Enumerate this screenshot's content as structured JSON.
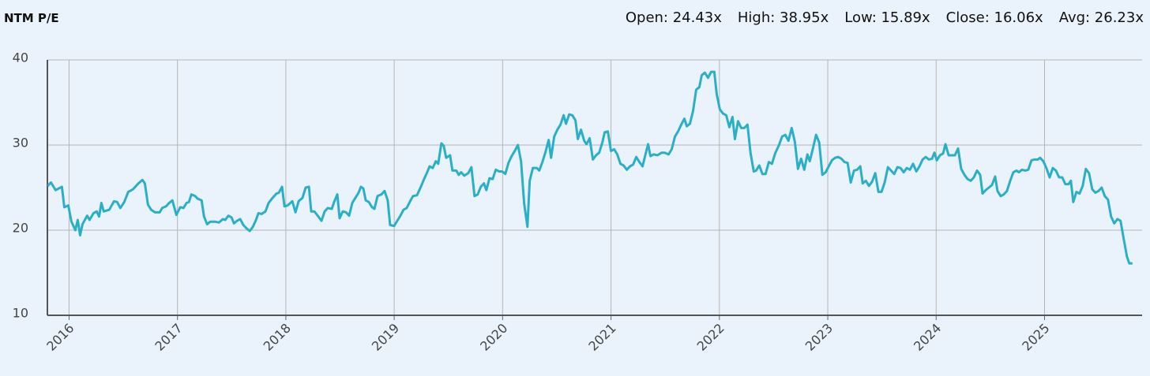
{
  "chart_data": {
    "type": "line",
    "title": "NTM P/E",
    "stats": [
      "Open: 24.43x",
      "High: 38.95x",
      "Low: 15.89x",
      "Close: 16.06x",
      "Avg: 26.23x"
    ],
    "color": "#2aafc7",
    "grid": true,
    "xlim": [
      2015.8,
      2025.9
    ],
    "xticks": [
      2016,
      2017,
      2018,
      2019,
      2020,
      2021,
      2022,
      2023,
      2024,
      2025
    ],
    "ylim": [
      10,
      40
    ],
    "yticks": [
      10,
      20,
      30,
      40
    ],
    "x": [
      2015.803,
      2015.833,
      2015.876,
      2015.934,
      2015.956,
      2015.993,
      2016.022,
      2016.058,
      2016.08,
      2016.102,
      2016.124,
      2016.167,
      2016.189,
      2016.226,
      2016.255,
      2016.277,
      2016.298,
      2016.32,
      2016.371,
      2016.415,
      2016.444,
      2016.473,
      2016.509,
      2016.546,
      2016.59,
      2016.64,
      2016.677,
      2016.699,
      2016.728,
      2016.757,
      2016.793,
      2016.837,
      2016.859,
      2016.895,
      2016.924,
      2016.953,
      2016.99,
      2017.026,
      2017.055,
      2017.084,
      2017.106,
      2017.128,
      2017.164,
      2017.186,
      2017.223,
      2017.245,
      2017.274,
      2017.303,
      2017.346,
      2017.383,
      2017.419,
      2017.441,
      2017.47,
      2017.499,
      2017.521,
      2017.55,
      2017.579,
      2017.608,
      2017.638,
      2017.667,
      2017.696,
      2017.725,
      2017.747,
      2017.776,
      2017.812,
      2017.841,
      2017.878,
      2017.914,
      2017.936,
      2017.965,
      2017.987,
      2018.016,
      2018.06,
      2018.089,
      2018.118,
      2018.154,
      2018.183,
      2018.213,
      2018.234,
      2018.263,
      2018.3,
      2018.329,
      2018.358,
      2018.387,
      2018.424,
      2018.445,
      2018.475,
      2018.496,
      2018.525,
      2018.555,
      2018.584,
      2018.613,
      2018.642,
      2018.671,
      2018.693,
      2018.715,
      2018.737,
      2018.766,
      2018.795,
      2018.817,
      2018.846,
      2018.882,
      2018.911,
      2018.94,
      2018.962,
      2018.999,
      2019.028,
      2019.057,
      2019.086,
      2019.115,
      2019.151,
      2019.173,
      2019.21,
      2019.246,
      2019.275,
      2019.304,
      2019.326,
      2019.355,
      2019.384,
      2019.406,
      2019.435,
      2019.457,
      2019.479,
      2019.515,
      2019.537,
      2019.573,
      2019.595,
      2019.617,
      2019.646,
      2019.683,
      2019.712,
      2019.741,
      2019.77,
      2019.799,
      2019.828,
      2019.85,
      2019.879,
      2019.908,
      2019.937,
      2019.967,
      2019.996,
      2020.025,
      2020.054,
      2020.083,
      2020.112,
      2020.141,
      2020.17,
      2020.199,
      2020.229,
      2020.25,
      2020.279,
      2020.316,
      2020.338,
      2020.367,
      2020.396,
      2020.425,
      2020.447,
      2020.476,
      2020.505,
      2020.534,
      2020.563,
      2020.585,
      2020.614,
      2020.643,
      2020.672,
      2020.694,
      2020.723,
      2020.753,
      2020.774,
      2020.803,
      2020.833,
      2020.862,
      2020.891,
      2020.92,
      2020.942,
      2020.971,
      2021.0,
      2021.029,
      2021.058,
      2021.087,
      2021.116,
      2021.146,
      2021.175,
      2021.204,
      2021.233,
      2021.262,
      2021.291,
      2021.32,
      2021.342,
      2021.364,
      2021.393,
      2021.429,
      2021.466,
      2021.495,
      2021.531,
      2021.56,
      2021.59,
      2021.619,
      2021.648,
      2021.677,
      2021.699,
      2021.728,
      2021.757,
      2021.786,
      2021.815,
      2021.837,
      2021.866,
      2021.895,
      2021.924,
      2021.953,
      2021.975,
      2022.004,
      2022.033,
      2022.063,
      2022.092,
      2022.121,
      2022.143,
      2022.172,
      2022.201,
      2022.23,
      2022.259,
      2022.288,
      2022.317,
      2022.339,
      2022.368,
      2022.397,
      2022.426,
      2022.456,
      2022.485,
      2022.514,
      2022.55,
      2022.579,
      2022.608,
      2022.637,
      2022.667,
      2022.696,
      2022.725,
      2022.754,
      2022.783,
      2022.812,
      2022.834,
      2022.863,
      2022.892,
      2022.921,
      2022.95,
      2022.98,
      2023.009,
      2023.038,
      2023.067,
      2023.096,
      2023.125,
      2023.154,
      2023.183,
      2023.212,
      2023.242,
      2023.271,
      2023.3,
      2023.322,
      2023.351,
      2023.38,
      2023.409,
      2023.438,
      2023.467,
      2023.496,
      2023.525,
      2023.555,
      2023.584,
      2023.613,
      2023.642,
      2023.671,
      2023.7,
      2023.729,
      2023.758,
      2023.787,
      2023.817,
      2023.846,
      2023.875,
      2023.904,
      2023.933,
      2023.962,
      2023.984,
      2024.006,
      2024.035,
      2024.064,
      2024.086,
      2024.115,
      2024.144,
      2024.173,
      2024.202,
      2024.231,
      2024.261,
      2024.29,
      2024.319,
      2024.348,
      2024.377,
      2024.406,
      2024.428,
      2024.457,
      2024.486,
      2024.515,
      2024.544,
      2024.566,
      2024.595,
      2024.624,
      2024.653,
      2024.683,
      2024.712,
      2024.741,
      2024.763,
      2024.792,
      2024.821,
      2024.85,
      2024.879,
      2024.908,
      2024.937,
      2024.959,
      2024.988,
      2025.017,
      2025.047,
      2025.076,
      2025.105,
      2025.134,
      2025.163,
      2025.192,
      2025.221,
      2025.243,
      2025.265,
      2025.294,
      2025.323,
      2025.352,
      2025.381,
      2025.41,
      2025.44,
      2025.469,
      2025.498,
      2025.527,
      2025.556,
      2025.585,
      2025.614,
      2025.643,
      2025.672,
      2025.701,
      2025.73,
      2025.76,
      2025.782,
      2025.811
    ],
    "values": [
      25.2,
      25.6,
      24.7,
      25.1,
      22.7,
      22.9,
      21,
      20,
      21.2,
      19.4,
      20.7,
      21.7,
      21.2,
      22,
      22.2,
      21.6,
      23.2,
      22.2,
      22.4,
      23.4,
      23.3,
      22.6,
      23.3,
      24.5,
      24.8,
      25.5,
      25.9,
      25.5,
      23,
      22.4,
      22.1,
      22.1,
      22.6,
      22.8,
      23.2,
      23.5,
      21.8,
      22.7,
      22.6,
      23.2,
      23.3,
      24.2,
      24,
      23.7,
      23.5,
      21.6,
      20.7,
      21,
      21,
      20.9,
      21.3,
      21.2,
      21.7,
      21.5,
      20.8,
      21.1,
      21.3,
      20.6,
      20.2,
      19.9,
      20.4,
      21.2,
      22,
      21.9,
      22.2,
      23.2,
      23.8,
      24.3,
      24.4,
      25.1,
      22.8,
      22.9,
      23.4,
      22.1,
      23.4,
      23.8,
      25,
      25.1,
      22.2,
      22.2,
      21.6,
      21.1,
      22.2,
      22.6,
      22.5,
      23.3,
      24.2,
      21.4,
      22.2,
      22.1,
      21.7,
      23.2,
      23.8,
      24.4,
      25.1,
      24.9,
      23.5,
      23.3,
      22.7,
      22.5,
      24,
      24.2,
      24.6,
      23.5,
      20.6,
      20.5,
      21.1,
      21.7,
      22.4,
      22.6,
      23.5,
      24,
      24.1,
      25.1,
      26,
      26.8,
      27.5,
      27.3,
      28.1,
      27.8,
      30.2,
      29.9,
      28.5,
      28.8,
      27,
      27,
      26.5,
      26.8,
      26.4,
      26.7,
      27.4,
      24,
      24.2,
      25.1,
      25.5,
      24.7,
      26.1,
      26,
      27.1,
      26.9,
      26.9,
      26.6,
      27.9,
      28.7,
      29.3,
      30,
      28.1,
      23.1,
      20.4,
      25.8,
      27.3,
      27.3,
      27,
      28,
      29.2,
      30.6,
      28.5,
      31,
      31.8,
      32.4,
      33.5,
      32.5,
      33.6,
      33.5,
      32.9,
      30.7,
      31.8,
      30.5,
      30.1,
      30.8,
      28.3,
      28.8,
      29.1,
      30.3,
      31.5,
      31.6,
      29.3,
      29.5,
      28.9,
      27.8,
      27.6,
      27.1,
      27.5,
      27.7,
      28.6,
      28,
      27.5,
      29,
      30.1,
      28.7,
      28.9,
      28.8,
      29.1,
      29.1,
      28.9,
      29.5,
      31,
      31.6,
      32.4,
      33.1,
      32.2,
      32.5,
      34,
      36.5,
      36.8,
      38.2,
      38.5,
      37.9,
      38.6,
      38.6,
      36,
      34.2,
      33.7,
      33.5,
      32.1,
      33.3,
      30.7,
      32.8,
      32,
      32,
      32.4,
      29,
      26.9,
      27,
      27.6,
      26.6,
      26.6,
      28,
      27.8,
      29,
      30,
      31,
      31.2,
      30.5,
      32,
      30.4,
      27.2,
      28.4,
      27.1,
      28.9,
      28.1,
      29.6,
      31.2,
      30.3,
      26.5,
      26.8,
      27.5,
      28.2,
      28.5,
      28.6,
      28.4,
      28,
      27.9,
      25.6,
      27,
      27.1,
      27.5,
      25.5,
      25.8,
      25.2,
      25.7,
      26.7,
      24.5,
      24.5,
      25.6,
      27.4,
      27,
      26.6,
      27.4,
      27.3,
      26.8,
      27.3,
      27.1,
      27.8,
      26.9,
      27.5,
      28.3,
      28.6,
      28.3,
      28.4,
      29.1,
      28.2,
      28.8,
      29,
      30.1,
      28.8,
      28.8,
      28.8,
      29.6,
      27.2,
      26.5,
      26,
      25.8,
      26.2,
      27,
      26.5,
      24.3,
      24.7,
      25,
      25.3,
      26.3,
      24.6,
      24,
      24.2,
      24.6,
      25.8,
      26.8,
      27,
      26.8,
      27.1,
      27,
      27.1,
      28.2,
      28.3,
      28.3,
      28.5,
      28.1,
      27.3,
      26.2,
      27.3,
      27,
      26.2,
      26.2,
      25.4,
      25.4,
      25.8,
      23.3,
      24.5,
      24.3,
      25.2,
      27.2,
      26.7,
      24.8,
      24.4,
      24.6,
      25,
      24,
      23.6,
      21.6,
      20.8,
      21.3,
      21.1,
      19,
      16.9,
      16.1,
      16.1
    ]
  }
}
